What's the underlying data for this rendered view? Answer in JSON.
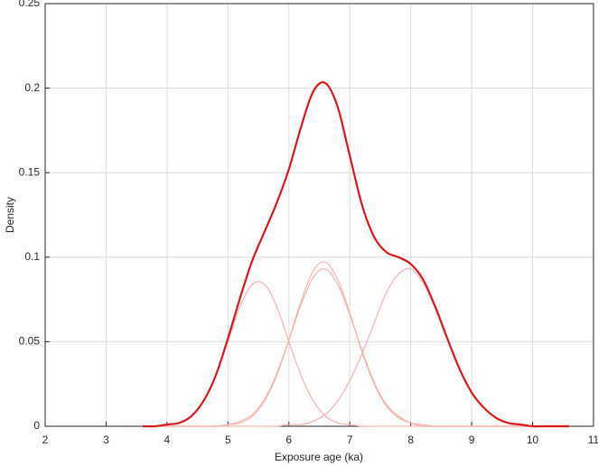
{
  "chart_data": {
    "type": "line",
    "xlabel": "Exposure age (ka)",
    "ylabel": "Density",
    "x": [
      3.6,
      3.8,
      4,
      4.2,
      4.4,
      4.6,
      4.8,
      5,
      5.2,
      5.4,
      5.6,
      5.8,
      6,
      6.2,
      6.4,
      6.6,
      6.8,
      7,
      7.2,
      7.4,
      7.6,
      7.8,
      8,
      8.2,
      8.4,
      8.6,
      8.8,
      9,
      9.2,
      9.4,
      9.6,
      9.8,
      10,
      10.2,
      10.4,
      10.6
    ],
    "series": [
      {
        "color": "#f4b3ad",
        "width": 1.2,
        "values": [
          0,
          0,
          0.001,
          0.002,
          0.006,
          0.015,
          0.03,
          0.05,
          0.071,
          0.084,
          0.084,
          0.071,
          0.05,
          0.03,
          0.015,
          0.006,
          0.002,
          0.001,
          0,
          0,
          0,
          0,
          0,
          0,
          0,
          0,
          0,
          0,
          0,
          0,
          0,
          0,
          0,
          0,
          0,
          0
        ]
      },
      {
        "color": "#f4b3ad",
        "width": 1.2,
        "values": [
          0,
          0,
          0,
          0,
          0,
          0,
          0,
          0.001,
          0.002,
          0.006,
          0.015,
          0.03,
          0.051,
          0.074,
          0.092,
          0.097,
          0.087,
          0.067,
          0.044,
          0.025,
          0.012,
          0.005,
          0.002,
          0,
          0,
          0,
          0,
          0,
          0,
          0,
          0,
          0,
          0,
          0,
          0,
          0
        ]
      },
      {
        "color": "#f4b3ad",
        "width": 1.2,
        "values": [
          0,
          0,
          0,
          0,
          0,
          0,
          0,
          0.001,
          0.003,
          0.007,
          0.016,
          0.031,
          0.051,
          0.072,
          0.088,
          0.093,
          0.084,
          0.066,
          0.045,
          0.026,
          0.013,
          0.006,
          0.002,
          0.001,
          0,
          0,
          0,
          0,
          0,
          0,
          0,
          0,
          0,
          0,
          0,
          0
        ]
      },
      {
        "color": "#f4b3ad",
        "width": 1.2,
        "values": [
          0,
          0,
          0,
          0,
          0,
          0,
          0,
          0,
          0,
          0,
          0,
          0,
          0.001,
          0.001,
          0.003,
          0.007,
          0.015,
          0.027,
          0.043,
          0.061,
          0.079,
          0.09,
          0.093,
          0.085,
          0.07,
          0.052,
          0.034,
          0.02,
          0.011,
          0.005,
          0.002,
          0.001,
          0,
          0,
          0,
          0
        ]
      },
      {
        "color": "#d7191c",
        "width": 2.2,
        "values": [
          0,
          0,
          0.001,
          0.002,
          0.006,
          0.015,
          0.03,
          0.052,
          0.076,
          0.098,
          0.115,
          0.132,
          0.152,
          0.177,
          0.198,
          0.203,
          0.189,
          0.16,
          0.131,
          0.112,
          0.103,
          0.1,
          0.096,
          0.087,
          0.071,
          0.052,
          0.034,
          0.02,
          0.011,
          0.005,
          0.002,
          0.001,
          0,
          0,
          0,
          0
        ]
      }
    ],
    "xlim": [
      2,
      11
    ],
    "xticks": [
      2,
      3,
      4,
      5,
      6,
      7,
      8,
      9,
      10,
      11
    ],
    "ylim": [
      0,
      0.25
    ],
    "yticks": [
      0,
      0.05,
      0.1,
      0.15,
      0.2,
      0.25
    ],
    "grid": true
  }
}
